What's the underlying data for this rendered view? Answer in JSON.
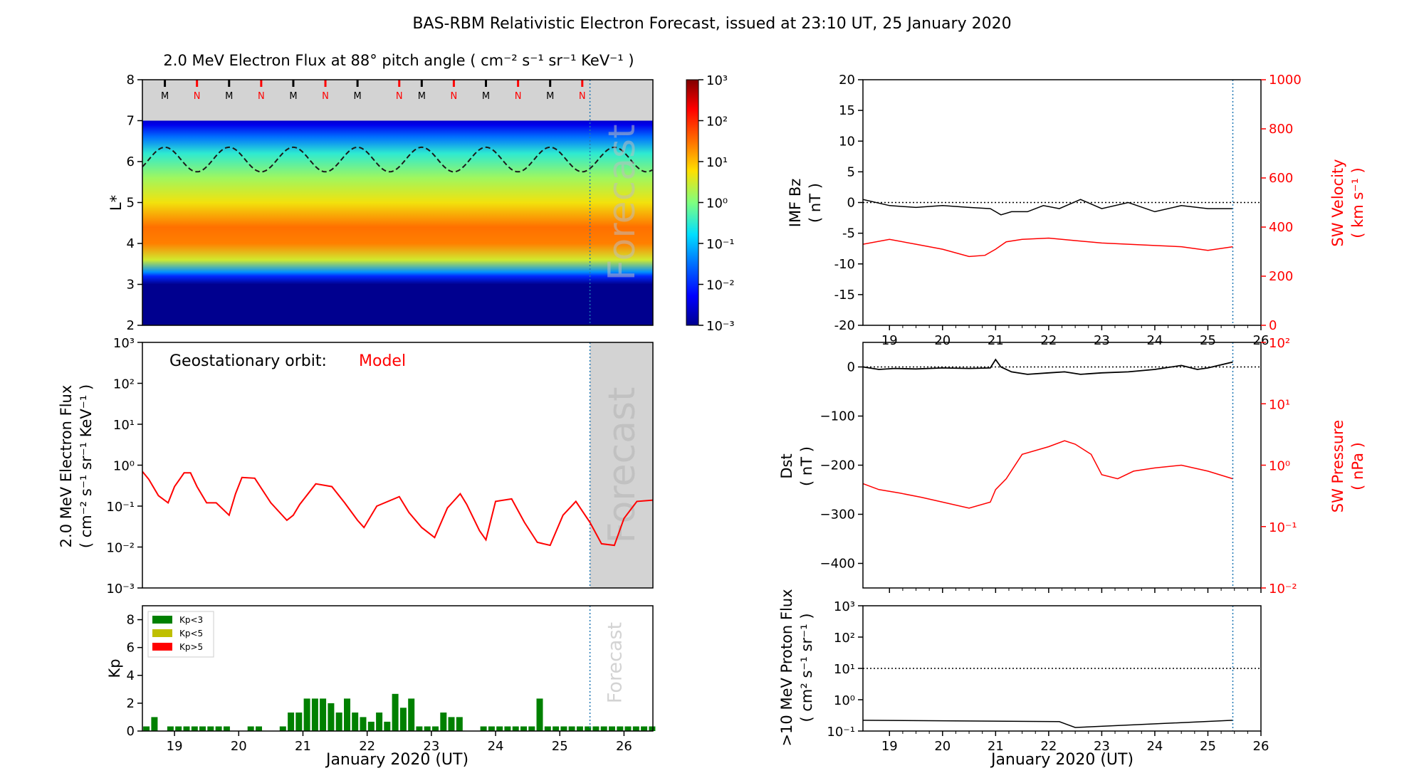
{
  "figure": {
    "title": "BAS-RBM Relativistic Electron Forecast, issued at 23:10 UT, 25 January 2020"
  },
  "colors": {
    "model": "#ff0000",
    "sw": "#ff0000",
    "forecast_shade": "#d3d3d3",
    "forecast_line": "#1f77b4",
    "kp_low": "#008000",
    "kp_mid": "#bfbf00",
    "kp_high": "#ff0000"
  },
  "chart_data": [
    {
      "id": "lstar_flux",
      "type": "heatmap",
      "title": "2.0 MeV Electron Flux at 88° pitch angle ( cm⁻² s⁻¹ sr⁻¹ KeV⁻¹ )",
      "xlabel": "",
      "ylabel": "L*",
      "xlim": [
        18.5,
        26.45
      ],
      "ylim": [
        2,
        8
      ],
      "yticks": [
        2,
        3,
        4,
        5,
        6,
        7,
        8
      ],
      "colorbar": {
        "scale": "log",
        "range": [
          0.001,
          1000
        ],
        "ticks": [
          "10⁻³",
          "10⁻²",
          "10⁻¹",
          "10⁰",
          "10¹",
          "10²",
          "10³"
        ]
      },
      "flux_profile": {
        "L": [
          2.0,
          3.0,
          3.2,
          3.3,
          3.6,
          4.0,
          4.4,
          5.0,
          5.6,
          6.2,
          6.6,
          6.9,
          7.0
        ],
        "log_flux": [
          -3.0,
          -3.0,
          -2.0,
          -1.3,
          0.5,
          1.4,
          1.5,
          0.7,
          0.2,
          -0.5,
          -1.5,
          -2.4,
          -2.6
        ]
      },
      "grey_region": {
        "L_from": 7.0,
        "L_to": 8.0
      },
      "magnetopause_line": {
        "L_mean": 6.05,
        "L_amplitude": 0.3,
        "period_days": 1.0
      },
      "orbit_markers": [
        {
          "day": 18.85,
          "label": "M"
        },
        {
          "day": 19.35,
          "label": "N"
        },
        {
          "day": 19.85,
          "label": "M"
        },
        {
          "day": 20.35,
          "label": "N"
        },
        {
          "day": 20.85,
          "label": "M"
        },
        {
          "day": 21.35,
          "label": "N"
        },
        {
          "day": 21.85,
          "label": "M"
        },
        {
          "day": 22.5,
          "label": "N"
        },
        {
          "day": 22.85,
          "label": "M"
        },
        {
          "day": 23.35,
          "label": "N"
        },
        {
          "day": 23.85,
          "label": "M"
        },
        {
          "day": 24.35,
          "label": "N"
        },
        {
          "day": 24.85,
          "label": "M"
        },
        {
          "day": 25.35,
          "label": "N"
        }
      ],
      "forecast_start": 25.47,
      "forecast_label": "Forecast"
    },
    {
      "id": "geo_flux",
      "type": "line",
      "title": "",
      "annotation": "Geostationary orbit:",
      "series_label": "Model",
      "xlabel": "",
      "ylabel": "2.0 MeV Electron Flux",
      "ylabel2": "( cm⁻² s⁻¹ sr⁻¹ KeV⁻¹ )",
      "xlim": [
        18.5,
        26.45
      ],
      "yscale": "log",
      "ylim": [
        0.001,
        1000
      ],
      "yticks": [
        "10⁻³",
        "10⁻²",
        "10⁻¹",
        "10⁰",
        "10¹",
        "10²",
        "10³"
      ],
      "x": [
        18.5,
        18.6,
        18.75,
        18.9,
        19.0,
        19.15,
        19.25,
        19.35,
        19.5,
        19.65,
        19.85,
        19.95,
        20.05,
        20.25,
        20.5,
        20.75,
        20.85,
        20.95,
        21.2,
        21.45,
        21.65,
        21.85,
        21.95,
        22.15,
        22.5,
        22.65,
        22.85,
        23.05,
        23.25,
        23.45,
        23.55,
        23.75,
        23.85,
        24.0,
        24.25,
        24.45,
        24.65,
        24.85,
        25.05,
        25.25,
        25.47,
        25.65,
        25.85,
        26.0,
        26.2,
        26.45
      ],
      "y": [
        0.7,
        0.45,
        0.18,
        0.12,
        0.3,
        0.65,
        0.65,
        0.3,
        0.12,
        0.12,
        0.06,
        0.2,
        0.5,
        0.48,
        0.12,
        0.045,
        0.06,
        0.11,
        0.35,
        0.3,
        0.12,
        0.045,
        0.03,
        0.1,
        0.17,
        0.07,
        0.03,
        0.017,
        0.09,
        0.2,
        0.11,
        0.025,
        0.015,
        0.13,
        0.15,
        0.04,
        0.013,
        0.011,
        0.06,
        0.13,
        0.04,
        0.012,
        0.011,
        0.05,
        0.13,
        0.14
      ],
      "forecast_start": 25.47,
      "forecast_label": "Forecast"
    },
    {
      "id": "kp",
      "type": "bar",
      "title": "",
      "xlabel": "January 2020 (UT)",
      "ylabel": "Kp",
      "xlim": [
        18.5,
        26.45
      ],
      "ylim": [
        0,
        9
      ],
      "yticks": [
        0,
        2,
        4,
        6,
        8
      ],
      "xticks": [
        "19",
        "20",
        "21",
        "22",
        "23",
        "24",
        "25",
        "26"
      ],
      "legend": [
        "Kp<3",
        "Kp<5",
        "Kp>5"
      ],
      "legend_position": "upper-left",
      "bar_width_days": 0.1,
      "x": [
        18.5625,
        18.6875,
        18.9375,
        19.0625,
        19.1875,
        19.3125,
        19.4375,
        19.5625,
        19.6875,
        19.8125,
        20.1875,
        20.3125,
        20.6875,
        20.8125,
        20.9375,
        21.0625,
        21.1875,
        21.3125,
        21.4375,
        21.5625,
        21.6875,
        21.8125,
        21.9375,
        22.0625,
        22.1875,
        22.3125,
        22.4375,
        22.5625,
        22.6875,
        22.8125,
        22.9375,
        23.0625,
        23.1875,
        23.3125,
        23.4375,
        23.8125,
        23.9375,
        24.0625,
        24.1875,
        24.3125,
        24.4375,
        24.5625,
        24.6875,
        24.8125,
        24.9375,
        25.0625,
        25.1875,
        25.3125,
        25.4375,
        25.5625,
        25.6875,
        25.8125,
        25.9375,
        26.0625,
        26.1875,
        26.3125,
        26.4375
      ],
      "values": [
        0.33,
        1.0,
        0.33,
        0.33,
        0.33,
        0.33,
        0.33,
        0.33,
        0.33,
        0.33,
        0.33,
        0.33,
        0.33,
        1.33,
        1.33,
        2.33,
        2.33,
        2.33,
        2.0,
        1.33,
        2.33,
        1.33,
        1.0,
        0.67,
        1.33,
        0.67,
        2.67,
        1.67,
        2.33,
        0.33,
        0.33,
        0.33,
        1.33,
        1.0,
        1.0,
        0.33,
        0.33,
        0.33,
        0.33,
        0.33,
        0.33,
        0.33,
        2.33,
        0.33,
        0.33,
        0.33,
        0.33,
        0.33,
        0.33,
        0.33,
        0.33,
        0.33,
        0.33,
        0.33,
        0.33,
        0.33,
        0.33
      ],
      "forecast_start": 25.47,
      "forecast_label": "Forecast"
    },
    {
      "id": "imf_bz",
      "type": "line",
      "title": "",
      "xlabel": "",
      "ylabel": "IMF Bz",
      "ylabel_unit": "( nT )",
      "xlim": [
        18.5,
        26.0
      ],
      "ylim": [
        -20,
        20
      ],
      "yticks": [
        -20,
        -15,
        -10,
        -5,
        0,
        5,
        10,
        15,
        20
      ],
      "ylabel_right": "SW Velocity",
      "ylabel_right_unit": "( km s⁻¹ )",
      "ylim_right": [
        0,
        1000
      ],
      "yticks_right": [
        0,
        200,
        400,
        600,
        800,
        1000
      ],
      "series": [
        {
          "name": "IMF Bz",
          "x": [
            18.5,
            19.0,
            19.5,
            20.0,
            20.5,
            20.9,
            21.0,
            21.1,
            21.3,
            21.6,
            21.9,
            22.2,
            22.6,
            23.0,
            23.5,
            24.0,
            24.5,
            25.0,
            25.47
          ],
          "y": [
            0.5,
            -0.5,
            -0.8,
            -0.5,
            -0.8,
            -1.0,
            -1.5,
            -2.0,
            -1.5,
            -1.5,
            -0.5,
            -1.0,
            0.5,
            -1.0,
            0.0,
            -1.5,
            -0.5,
            -1.0,
            -1.0
          ]
        },
        {
          "name": "SW Velocity",
          "axis": "right",
          "x": [
            18.5,
            19.0,
            19.5,
            20.0,
            20.5,
            20.8,
            21.0,
            21.2,
            21.5,
            22.0,
            22.5,
            23.0,
            23.5,
            24.0,
            24.5,
            25.0,
            25.47
          ],
          "y": [
            330,
            350,
            330,
            310,
            280,
            285,
            310,
            340,
            350,
            355,
            345,
            335,
            330,
            325,
            320,
            305,
            320
          ]
        }
      ],
      "forecast_start": 25.47
    },
    {
      "id": "dst",
      "type": "line",
      "title": "",
      "xlabel": "",
      "ylabel": "Dst",
      "ylabel_unit": "( nT )",
      "xlim": [
        18.5,
        26.0
      ],
      "ylim": [
        -450,
        50
      ],
      "yticks": [
        -400,
        -300,
        -200,
        -100,
        0
      ],
      "ylabel_right": "SW Pressure",
      "ylabel_right_unit": "( nPa )",
      "ylim_right": [
        0.01,
        100
      ],
      "yticks_right": [
        "10⁻²",
        "10⁻¹",
        "10⁰",
        "10¹",
        "10²"
      ],
      "series": [
        {
          "name": "Dst",
          "x": [
            18.5,
            18.8,
            19.1,
            19.5,
            20.0,
            20.5,
            20.9,
            21.0,
            21.1,
            21.3,
            21.6,
            22.0,
            22.3,
            22.6,
            23.0,
            23.5,
            24.0,
            24.5,
            24.8,
            25.0,
            25.47
          ],
          "y": [
            0,
            -5,
            -3,
            -4,
            -2,
            -3,
            -2,
            15,
            0,
            -10,
            -15,
            -12,
            -10,
            -15,
            -12,
            -10,
            -5,
            3,
            -5,
            -2,
            10
          ]
        },
        {
          "name": "SW Pressure",
          "axis": "right",
          "x": [
            18.5,
            18.8,
            19.2,
            19.6,
            20.0,
            20.5,
            20.9,
            21.0,
            21.2,
            21.5,
            22.0,
            22.3,
            22.5,
            22.8,
            23.0,
            23.3,
            23.6,
            24.0,
            24.5,
            25.0,
            25.47
          ],
          "y": [
            0.5,
            0.4,
            0.35,
            0.3,
            0.25,
            0.2,
            0.25,
            0.4,
            0.6,
            1.5,
            2.0,
            2.5,
            2.2,
            1.5,
            0.7,
            0.6,
            0.8,
            0.9,
            1.0,
            0.8,
            0.6
          ]
        }
      ],
      "forecast_start": 25.47
    },
    {
      "id": "proton_flux",
      "type": "line",
      "title": "",
      "xlabel": "January 2020 (UT)",
      "ylabel": ">10 MeV Proton Flux",
      "ylabel2": "( cm² s⁻¹ sr⁻¹ )",
      "xlim": [
        18.5,
        26.0
      ],
      "yscale": "log",
      "ylim": [
        0.1,
        1000
      ],
      "yticks": [
        "10⁻¹",
        "10⁰",
        "10¹",
        "10²",
        "10³"
      ],
      "xticks": [
        "19",
        "20",
        "21",
        "22",
        "23",
        "24",
        "25",
        "26"
      ],
      "threshold": 10,
      "x": [
        18.5,
        22.2,
        22.5,
        25.47
      ],
      "y": [
        0.22,
        0.2,
        0.13,
        0.22
      ],
      "forecast_start": 25.47
    }
  ]
}
